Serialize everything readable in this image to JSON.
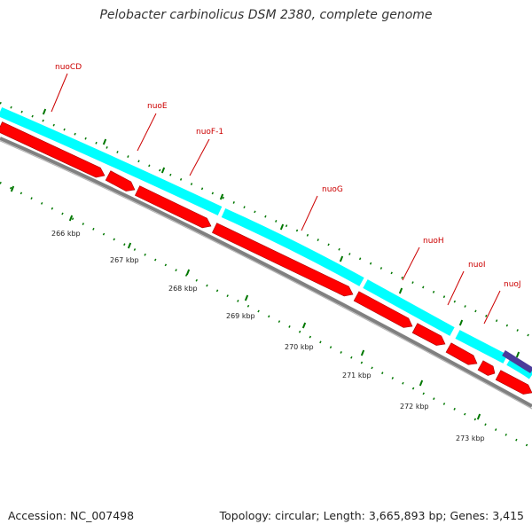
{
  "title": "Pelobacter carbinolicus DSM 2380, complete genome",
  "footer": {
    "accession": "Accession: NC_007498",
    "summary": "Topology: circular; Length: 3,665,893 bp; Genes: 3,415"
  },
  "colors": {
    "cds_forward": "#ff0000",
    "feature_band": "#00ffff",
    "backbone": "#808080",
    "tick": "#007700",
    "label_text": "#cc0000",
    "label_line": "#cc0000",
    "other_feature": "#4b3c9b"
  },
  "map": {
    "tick_labels": [
      "266 kbp",
      "267 kbp",
      "268 kbp",
      "269 kbp",
      "270 kbp",
      "271 kbp",
      "272 kbp",
      "273 kbp"
    ],
    "genes": [
      {
        "name": "nuoCD"
      },
      {
        "name": "nuoE"
      },
      {
        "name": "nuoF-1"
      },
      {
        "name": "nuoG"
      },
      {
        "name": "nuoH"
      },
      {
        "name": "nuoI"
      },
      {
        "name": "nuoJ"
      }
    ]
  }
}
